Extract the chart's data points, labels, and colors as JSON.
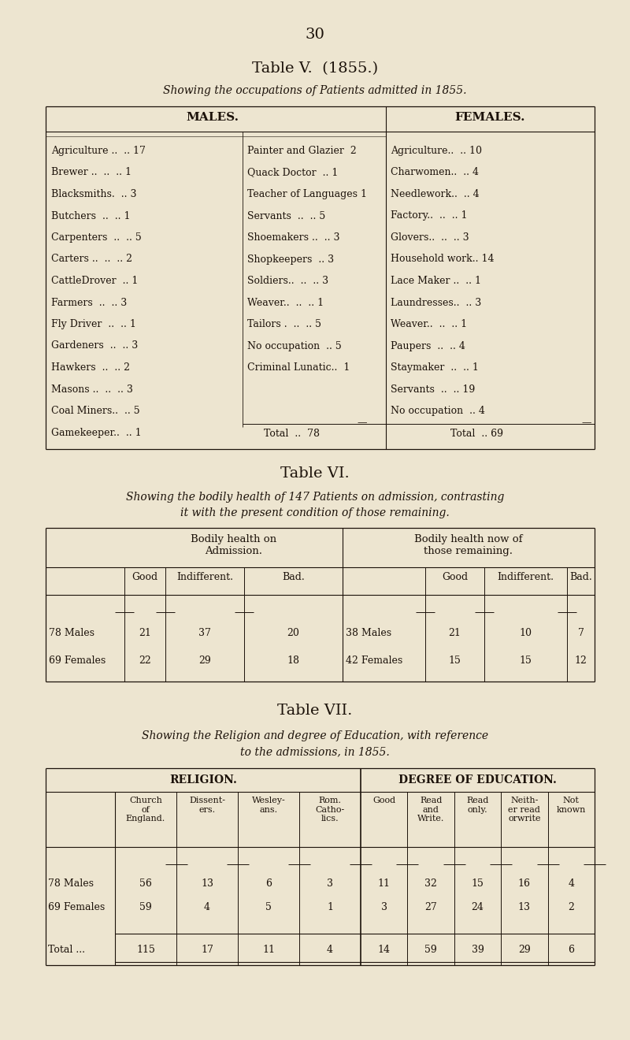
{
  "bg_color": "#ede5d0",
  "page_num": "30",
  "table5_title": "Table V.  (1855.)",
  "table5_subtitle": "Showing the occupations of Patients admitted in 1855.",
  "males_header": "MALES.",
  "females_header": "FEMALES.",
  "males_col1": [
    "Agriculture ..  .. 17",
    "Brewer ..  ..  .. 1",
    "Blacksmiths.  .. 3",
    "Butchers  ..  .. 1",
    "Carpenters  ..  .. 5",
    "Carters ..  ..  .. 2",
    "CattleDrover  .. 1",
    "Farmers  ..  .. 3",
    "Fly Driver  ..  .. 1",
    "Gardeners  ..  .. 3",
    "Hawkers  ..  .. 2",
    "Masons ..  ..  .. 3",
    "Coal Miners..  .. 5",
    "Gamekeeper..  .. 1"
  ],
  "males_col2": [
    "Painter and Glazier  2",
    "Quack Doctor  .. 1",
    "Teacher of Languages 1",
    "Servants  ..  .. 5",
    "Shoemakers ..  .. 3",
    "Shopkeepers  .. 3",
    "Soldiers..  ..  .. 3",
    "Weaver..  ..  .. 1",
    "Tailors .  ..  .. 5",
    "No occupation  .. 5",
    "Criminal Lunatic..  1"
  ],
  "females_col": [
    "Agriculture..  .. 10",
    "Charwomen..  .. 4",
    "Needlework..  .. 4",
    "Factory..  ..  .. 1",
    "Glovers..  ..  .. 3",
    "Household work.. 14",
    "Lace Maker ..  .. 1",
    "Laundresses..  .. 3",
    "Weaver..  ..  .. 1",
    "Paupers  ..  .. 4",
    "Staymaker  ..  .. 1",
    "Servants  ..  .. 19",
    "No occupation  .. 4"
  ],
  "males_total": "Total  ..  78",
  "females_total": "Total  .. 69",
  "table6_title": "Table VI.",
  "table6_subtitle1": "Showing the bodily health of 147 Patients on admission, contrasting",
  "table6_subtitle2": "it with the present condition of those remaining.",
  "t6_span_left": "Bodily health on\nAdmission.",
  "t6_span_right": "Bodily health now of\nthose remaining.",
  "t6_col_headers_left": [
    "Good",
    "Indifferent.",
    "Bad."
  ],
  "t6_col_headers_right": [
    "Good",
    "Indifferent.",
    "Bad."
  ],
  "t6_rows": [
    [
      "78 Males",
      "21",
      "37",
      "20",
      "38 Males",
      "21",
      "10",
      "7"
    ],
    [
      "69 Females",
      "22",
      "29",
      "18",
      "42 Females",
      "15",
      "15",
      "12"
    ]
  ],
  "table7_title": "Table VII.",
  "table7_subtitle1": "Showing the Religion and degree of Education, with reference",
  "table7_subtitle2": "to the admissions, in 1855.",
  "t7_religion_header": "RELIGION.",
  "t7_education_header": "DEGREE OF EDUCATION.",
  "t7_religion_cols": [
    "Church\nof\nEngland.",
    "Dissent-\ners.",
    "Wesley-\nans.",
    "Rom.\nCatho-\nlics."
  ],
  "t7_edu_cols": [
    "Good",
    "Read\nand\nWrite.",
    "Read\nonly.",
    "Neith-\ner read\norwrite",
    "Not\nknown"
  ],
  "t7_rows": [
    [
      "78 Males",
      "56",
      "13",
      "6",
      "3",
      "11",
      "32",
      "15",
      "16",
      "4"
    ],
    [
      "69 Females",
      "59",
      "4",
      "5",
      "1",
      "3",
      "27",
      "24",
      "13",
      "2"
    ]
  ],
  "t7_totals": [
    "Total ...",
    "115",
    "17",
    "11",
    "4",
    "14",
    "59",
    "39",
    "29",
    "6"
  ]
}
